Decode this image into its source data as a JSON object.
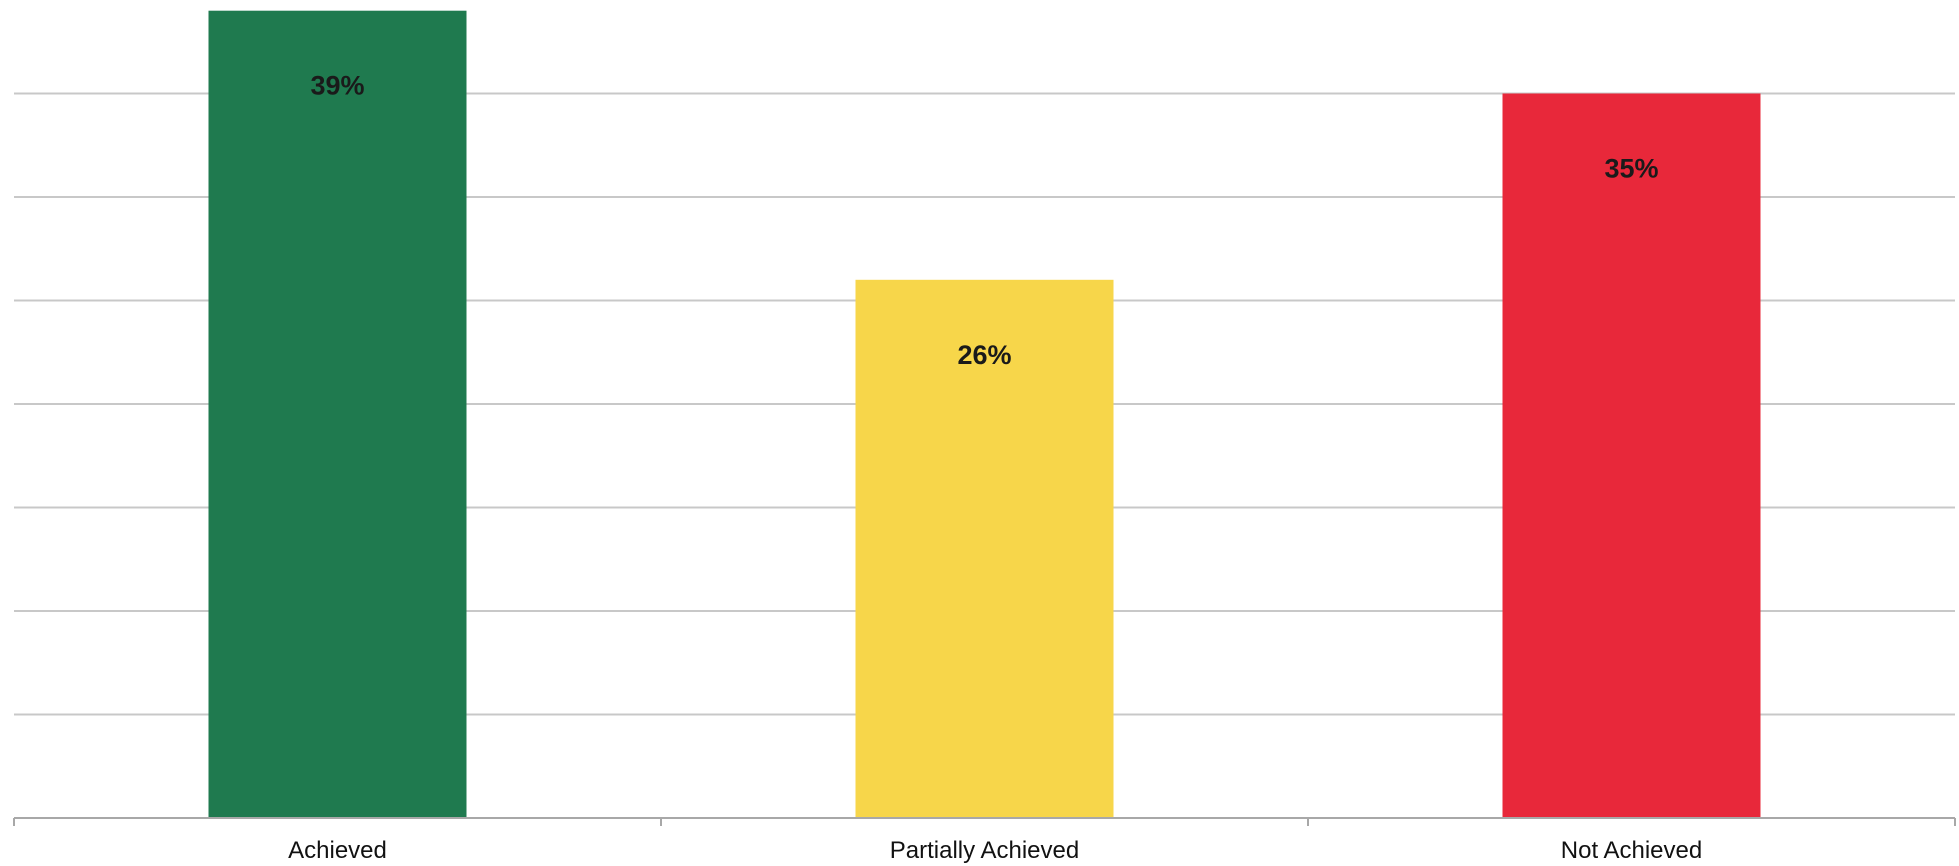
{
  "chart_data": {
    "type": "bar",
    "categories": [
      "Achieved",
      "Partially Achieved",
      "Not Achieved"
    ],
    "values": [
      39,
      26,
      35
    ],
    "data_labels": [
      "39%",
      "26%",
      "35%"
    ],
    "unit": "%",
    "ylim": [
      0,
      40
    ],
    "gridlines": true,
    "grid_step": 5,
    "legend": "none",
    "colors": [
      "#1f7a4f",
      "#f7d64a",
      "#e8283a"
    ],
    "title": "",
    "xlabel": "",
    "ylabel": ""
  }
}
